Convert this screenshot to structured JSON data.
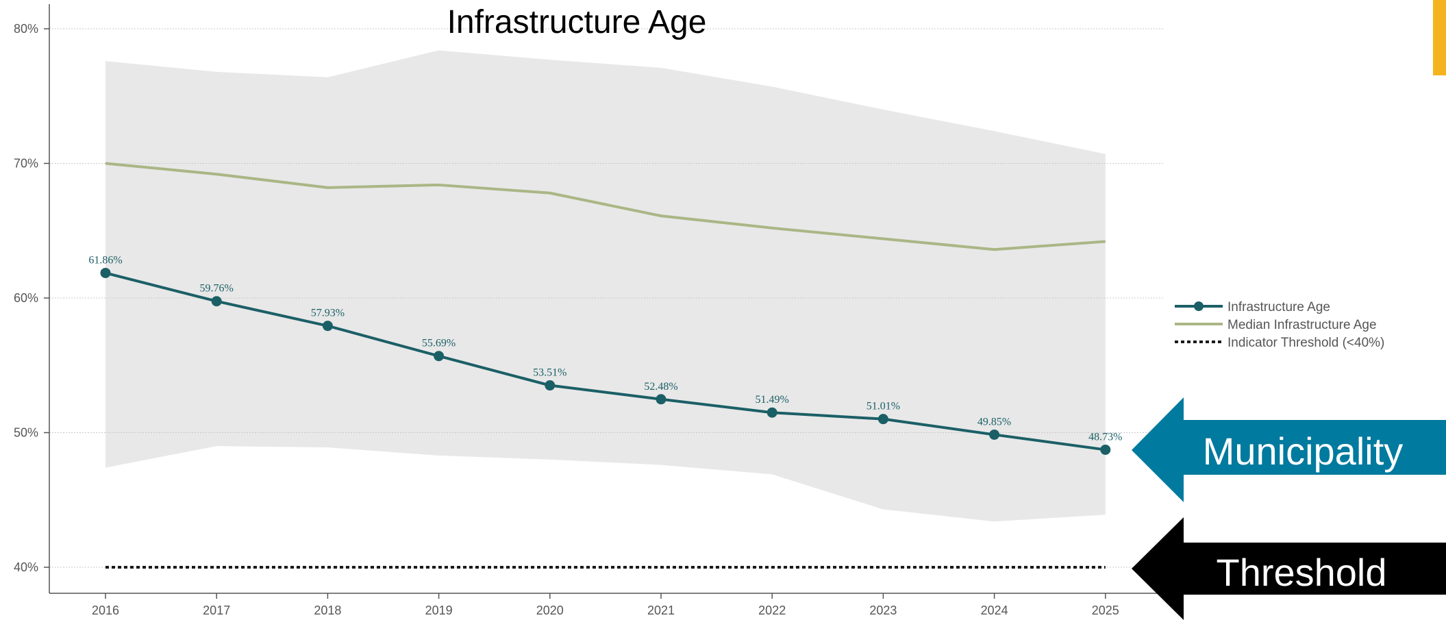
{
  "chart_data": {
    "type": "line",
    "title": "Infrastructure Age",
    "xlabel": "",
    "ylabel": "",
    "x": [
      "2016",
      "2017",
      "2018",
      "2019",
      "2020",
      "2021",
      "2022",
      "2023",
      "2024",
      "2025"
    ],
    "ylim": [
      0.38,
      0.82
    ],
    "yticks": [
      0.4,
      0.5,
      0.6,
      0.7,
      0.8
    ],
    "ytick_labels": [
      "40%",
      "50%",
      "60%",
      "70%",
      "80%"
    ],
    "grid": "horizontal",
    "legend_position": "right",
    "band": {
      "upper": [
        0.776,
        0.768,
        0.764,
        0.784,
        0.777,
        0.771,
        0.757,
        0.74,
        0.724,
        0.707
      ],
      "lower": [
        0.474,
        0.49,
        0.489,
        0.483,
        0.48,
        0.476,
        0.469,
        0.443,
        0.434,
        0.439
      ],
      "color": "#e8e8e8"
    },
    "series": [
      {
        "name": "Infrastructure Age",
        "values": [
          0.6186,
          0.5976,
          0.5793,
          0.5569,
          0.5351,
          0.5248,
          0.5149,
          0.5101,
          0.4985,
          0.4873
        ],
        "labels": [
          "61.86%",
          "59.76%",
          "57.93%",
          "55.69%",
          "53.51%",
          "52.48%",
          "51.49%",
          "51.01%",
          "49.85%",
          "48.73%"
        ],
        "color": "#1b5f66",
        "markers": true
      },
      {
        "name": "Median Infrastructure Age",
        "values": [
          0.7,
          0.692,
          0.682,
          0.684,
          0.678,
          0.661,
          0.652,
          0.644,
          0.636,
          0.642
        ],
        "color": "#aab685",
        "markers": false
      },
      {
        "name": "Indicator Threshold (<40%)",
        "values": [
          0.4,
          0.4,
          0.4,
          0.4,
          0.4,
          0.4,
          0.4,
          0.4,
          0.4,
          0.4
        ],
        "color": "#1a1a1a",
        "dashed": true
      }
    ]
  },
  "callouts": {
    "municipality": {
      "label": "Municipality",
      "color": "#007a9e"
    },
    "threshold": {
      "label": "Threshold",
      "color": "#000000"
    },
    "corner_accent_color": "#f5b41e"
  }
}
